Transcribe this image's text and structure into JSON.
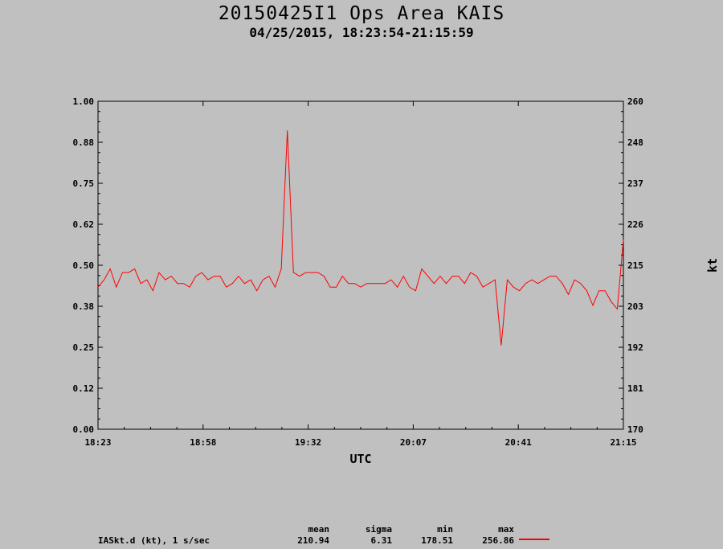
{
  "header": {
    "title": "20150425I1 Ops Area KAIS",
    "subtitle": "04/25/2015, 18:23:54-21:15:59"
  },
  "stats": {
    "headers": {
      "mean": "mean",
      "sigma": "sigma",
      "min": "min",
      "max": "max"
    },
    "series_label": "IASkt.d (kt), 1 s/sec",
    "mean": "210.94",
    "sigma": "6.31",
    "min": "178.51",
    "max": "256.86",
    "line_color": "#ff0000"
  },
  "chart_data": {
    "type": "line",
    "title": "20150425I1 Ops Area KAIS",
    "subtitle": "04/25/2015, 18:23:54-21:15:59",
    "xlabel": "UTC",
    "ylabel_left": "",
    "ylabel_right": "kt",
    "x_ticks": [
      "18:23",
      "18:58",
      "19:32",
      "20:07",
      "20:41",
      "21:15"
    ],
    "y_left_ticks": [
      "0.00",
      "0.12",
      "0.25",
      "0.38",
      "0.50",
      "0.62",
      "0.75",
      "0.88",
      "1.00"
    ],
    "y_right_ticks": [
      "170",
      "181",
      "192",
      "203",
      "215",
      "226",
      "237",
      "248",
      "260"
    ],
    "y_left_lim": [
      0,
      1
    ],
    "y_right_lim": [
      170,
      260
    ],
    "grid": false,
    "series": [
      {
        "name": "IASkt.d (kt), 1 s/sec",
        "color": "#ff0000",
        "x": [
          "18:23",
          "18:25",
          "18:27",
          "18:29",
          "18:31",
          "18:33",
          "18:35",
          "18:37",
          "18:39",
          "18:41",
          "18:43",
          "18:45",
          "18:47",
          "18:49",
          "18:51",
          "18:53",
          "18:55",
          "18:57",
          "18:59",
          "19:01",
          "19:03",
          "19:05",
          "19:07",
          "19:09",
          "19:11",
          "19:13",
          "19:15",
          "19:17",
          "19:19",
          "19:21",
          "19:23",
          "19:25",
          "19:27",
          "19:29",
          "19:31",
          "19:33",
          "19:35",
          "19:37",
          "19:39",
          "19:41",
          "19:43",
          "19:45",
          "19:47",
          "19:49",
          "19:51",
          "19:53",
          "19:55",
          "19:57",
          "19:59",
          "20:01",
          "20:03",
          "20:05",
          "20:07",
          "20:09",
          "20:11",
          "20:13",
          "20:15",
          "20:17",
          "20:19",
          "20:21",
          "20:23",
          "20:25",
          "20:27",
          "20:29",
          "20:31",
          "20:33",
          "20:35",
          "20:37",
          "20:39",
          "20:41",
          "20:43",
          "20:45",
          "20:47",
          "20:49",
          "20:51",
          "20:53",
          "20:55",
          "20:57",
          "20:59",
          "21:01",
          "21:03",
          "21:05",
          "21:07",
          "21:09",
          "21:11",
          "21:13",
          "21:15"
        ],
        "values": [
          209,
          211,
          214,
          209,
          213,
          213,
          214,
          210,
          211,
          208,
          213,
          211,
          212,
          210,
          210,
          209,
          212,
          213,
          211,
          212,
          212,
          209,
          210,
          212,
          210,
          211,
          208,
          211,
          212,
          209,
          214,
          252,
          213,
          212,
          213,
          213,
          213,
          212,
          209,
          209,
          212,
          210,
          210,
          209,
          210,
          210,
          210,
          210,
          211,
          209,
          212,
          209,
          208,
          214,
          212,
          210,
          212,
          210,
          212,
          212,
          210,
          213,
          212,
          209,
          210,
          211,
          193,
          211,
          209,
          208,
          210,
          211,
          210,
          211,
          212,
          212,
          210,
          207,
          211,
          210,
          208,
          204,
          208,
          208,
          205,
          203,
          222
        ]
      }
    ]
  }
}
